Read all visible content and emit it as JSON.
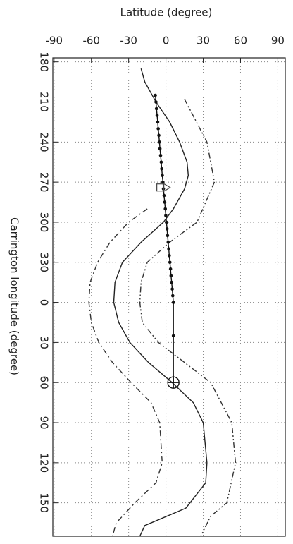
{
  "chart_data": {
    "type": "line",
    "xlabel": "Latitude (degree)",
    "ylabel": "Carrington longitude (degree)",
    "xlim": [
      -91,
      96
    ],
    "xticks": [
      -90,
      -60,
      -30,
      0,
      30,
      60,
      90
    ],
    "ylim": [
      177,
      535
    ],
    "yticks": [
      180,
      210,
      240,
      270,
      300,
      330,
      {
        "value": 360,
        "label": "0"
      },
      {
        "value": 390,
        "label": "30"
      },
      {
        "value": 420,
        "label": "60"
      },
      {
        "value": 450,
        "label": "90"
      },
      {
        "value": 480,
        "label": "120"
      },
      {
        "value": 510,
        "label": "150"
      }
    ],
    "grid": true,
    "series": [
      {
        "color": "#222222",
        "line": "solid",
        "marker": "none",
        "x": [
          -20,
          -17,
          -8,
          3,
          11,
          17,
          18,
          15,
          6,
          -2,
          -20,
          -35,
          -41,
          -42,
          -38,
          -29,
          -14,
          5,
          22,
          30,
          33,
          32,
          16,
          -17,
          -21
        ],
        "values": [
          185,
          195,
          210,
          225,
          240,
          255,
          265,
          275,
          290,
          300,
          315,
          330,
          345,
          360,
          375,
          390,
          405,
          420,
          435,
          450,
          480,
          495,
          514,
          527,
          535
        ]
      },
      {
        "color": "#333333",
        "line": "dashdot",
        "marker": "none",
        "x": [
          -15,
          -30,
          -45,
          -55,
          -61,
          -62,
          -60,
          -54,
          -43,
          -28,
          -12,
          -5,
          -3,
          -8,
          -25,
          -40,
          -43
        ],
        "values": [
          290,
          300,
          315,
          330,
          345,
          360,
          375,
          390,
          405,
          420,
          435,
          450,
          480,
          495,
          510,
          525,
          535
        ]
      },
      {
        "color": "#333333",
        "line": "dashdotdot",
        "marker": "none",
        "x": [
          15,
          33,
          39,
          25,
          3,
          -15,
          -20,
          -21,
          -19,
          -6,
          36,
          53,
          56,
          49,
          36,
          28
        ],
        "values": [
          208,
          240,
          270,
          300,
          315,
          330,
          345,
          360,
          375,
          390,
          420,
          450,
          480,
          510,
          520,
          535
        ]
      },
      {
        "color": "#111111",
        "line": "solid",
        "marker": "dot",
        "x": [
          -8.5,
          -8.0,
          -7.6,
          -7.1,
          -6.6,
          -6.2,
          -5.7,
          -5.2,
          -4.8,
          -4.3,
          -3.8,
          -3.4,
          -2.9,
          -2.4,
          -2.0,
          -1.5,
          -1.0,
          -0.5,
          -0.1,
          0.4,
          0.9,
          1.3,
          1.8,
          2.3,
          2.7,
          3.2,
          3.7,
          4.1,
          4.6,
          5.1,
          5.5,
          6.0,
          6.0
        ],
        "values": [
          205,
          210,
          215,
          220,
          225,
          230,
          235,
          240,
          245,
          250,
          255,
          260,
          265,
          270,
          275,
          280,
          285,
          290,
          295,
          300,
          305,
          310,
          315,
          320,
          325,
          330,
          335,
          340,
          345,
          350,
          355,
          360,
          385
        ]
      },
      {
        "color": "#111111",
        "line": "none",
        "marker": "circle-plus",
        "x": [
          6
        ],
        "values": [
          420
        ]
      },
      {
        "color": "#444444",
        "line": "none",
        "marker": "square",
        "x": [
          -4.5
        ],
        "values": [
          274
        ]
      },
      {
        "color": "#444444",
        "line": "none",
        "marker": "triangle",
        "x": [
          0
        ],
        "values": [
          274
        ]
      }
    ]
  }
}
